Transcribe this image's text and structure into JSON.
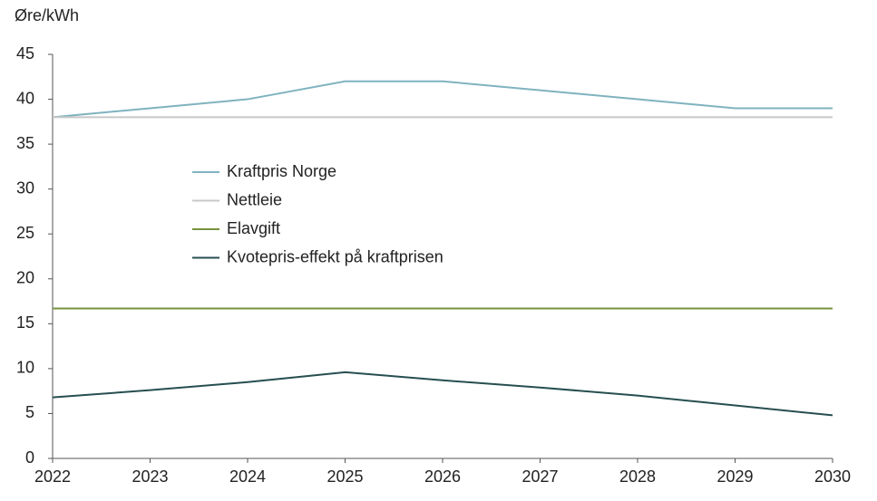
{
  "chart_data": {
    "type": "line",
    "y_label": "Øre/kWh",
    "x": [
      2022,
      2023,
      2024,
      2025,
      2026,
      2027,
      2028,
      2029,
      2030
    ],
    "xlim": [
      2022,
      2030
    ],
    "xticks": [
      2022,
      2023,
      2024,
      2025,
      2026,
      2027,
      2028,
      2029,
      2030
    ],
    "ylim": [
      0,
      45
    ],
    "yticks": [
      0,
      5,
      10,
      15,
      20,
      25,
      30,
      35,
      40,
      45
    ],
    "grid": false,
    "legend": "left",
    "series": [
      {
        "name": "Kraftpris Norge",
        "color": "#7fb3bf",
        "values": [
          38,
          39,
          40,
          42,
          42,
          41,
          40,
          39,
          39
        ]
      },
      {
        "name": "Nettleie",
        "color": "#c8c8c8",
        "values": [
          38,
          38,
          38,
          38,
          38,
          38,
          38,
          38,
          38
        ]
      },
      {
        "name": "Elavgift",
        "color": "#76923c",
        "values": [
          16.7,
          16.7,
          16.7,
          16.7,
          16.7,
          16.7,
          16.7,
          16.7,
          16.7
        ]
      },
      {
        "name": "Kvotepris-effekt på kraftprisen",
        "color": "#264e50",
        "values": [
          6.8,
          7.6,
          8.5,
          9.6,
          8.7,
          7.9,
          7.0,
          5.9,
          4.8
        ]
      }
    ]
  }
}
